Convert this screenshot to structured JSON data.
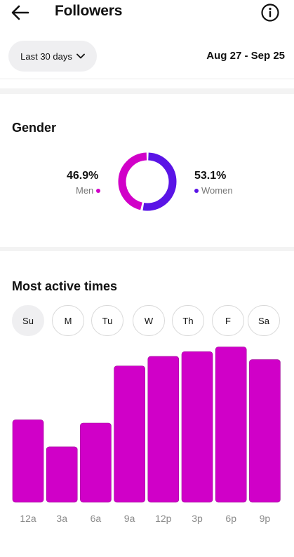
{
  "header": {
    "title": "Followers",
    "back_icon": "arrow-left-icon",
    "info_icon": "info-circle-icon"
  },
  "filter": {
    "range_label": "Last 30 days",
    "date_range": "Aug 27 - Sep 25"
  },
  "gender": {
    "title": "Gender",
    "men": {
      "percent": "46.9%",
      "label": "Men",
      "value": 46.9,
      "color": "#d100c8"
    },
    "women": {
      "percent": "53.1%",
      "label": "Women",
      "value": 53.1,
      "color": "#5a14e6"
    }
  },
  "active_times": {
    "title": "Most active times",
    "days": [
      "Su",
      "M",
      "Tu",
      "W",
      "Th",
      "F",
      "Sa"
    ],
    "selected_day": "Su"
  },
  "chart_data": {
    "type": "bar",
    "categories": [
      "12a",
      "3a",
      "6a",
      "9a",
      "12p",
      "3p",
      "6p",
      "9p"
    ],
    "values": [
      52,
      35,
      50,
      86,
      92,
      95,
      98,
      90
    ],
    "ylim": [
      0,
      100
    ],
    "color": "#d000c8",
    "grid": false
  }
}
